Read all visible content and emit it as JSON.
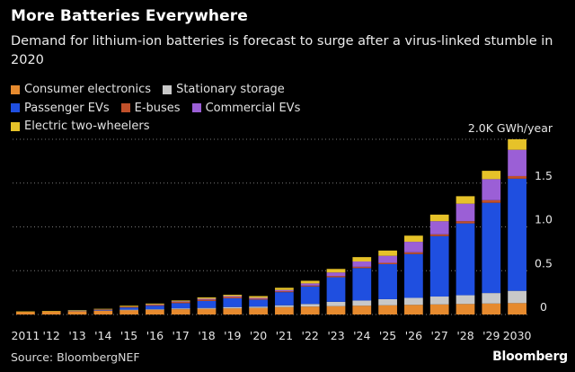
{
  "header": {
    "title": "More Batteries Everywhere",
    "subtitle": "Demand for lithium-ion batteries is forecast to surge after a virus-linked stumble in 2020"
  },
  "footer": {
    "source": "Source: BloombergNEF",
    "brand": "Bloomberg"
  },
  "chart_data": {
    "type": "bar",
    "stacked": true,
    "title": "More Batteries Everywhere",
    "subtitle": "Demand for lithium-ion batteries is forecast to surge after a virus-linked stumble in 2020",
    "unit": "GWh/year",
    "top_tick_label": "2.0K GWh/year",
    "ylim": [
      0,
      2.0
    ],
    "yticks": [
      0,
      0.5,
      1.0,
      1.5
    ],
    "ytick_labels": [
      "0",
      "0.5",
      "1.0",
      "1.5"
    ],
    "grid": true,
    "legend_position": "top-left",
    "categories": [
      "2011",
      "'12",
      "'13",
      "'14",
      "'15",
      "'16",
      "'17",
      "'18",
      "'19",
      "'20",
      "'21",
      "'22",
      "'23",
      "'24",
      "'25",
      "'26",
      "'27",
      "'28",
      "'29",
      "2030"
    ],
    "series": [
      {
        "name": "Consumer electronics",
        "color": "#e68a2e",
        "values": [
          0.03,
          0.035,
          0.04,
          0.045,
          0.05,
          0.055,
          0.06,
          0.065,
          0.07,
          0.075,
          0.085,
          0.09,
          0.095,
          0.1,
          0.105,
          0.11,
          0.115,
          0.12,
          0.125,
          0.13
        ]
      },
      {
        "name": "Stationary storage",
        "color": "#c8c8c8",
        "values": [
          0.0,
          0.0,
          0.0,
          0.0,
          0.005,
          0.005,
          0.01,
          0.01,
          0.015,
          0.015,
          0.02,
          0.03,
          0.05,
          0.06,
          0.07,
          0.08,
          0.09,
          0.1,
          0.12,
          0.14
        ]
      },
      {
        "name": "Passenger EVs",
        "color": "#1f4fe0",
        "values": [
          0.0,
          0.0,
          0.005,
          0.01,
          0.025,
          0.04,
          0.06,
          0.08,
          0.1,
          0.08,
          0.15,
          0.2,
          0.28,
          0.37,
          0.4,
          0.5,
          0.69,
          0.82,
          1.03,
          1.28
        ]
      },
      {
        "name": "E-buses",
        "color": "#c0502a",
        "values": [
          0.0,
          0.0,
          0.0,
          0.005,
          0.01,
          0.01,
          0.015,
          0.015,
          0.015,
          0.01,
          0.01,
          0.01,
          0.015,
          0.015,
          0.015,
          0.02,
          0.02,
          0.025,
          0.03,
          0.03
        ]
      },
      {
        "name": "Commercial EVs",
        "color": "#9b5fd6",
        "values": [
          0.0,
          0.0,
          0.0,
          0.0,
          0.0,
          0.005,
          0.005,
          0.01,
          0.01,
          0.01,
          0.015,
          0.025,
          0.04,
          0.06,
          0.08,
          0.12,
          0.15,
          0.2,
          0.24,
          0.3
        ]
      },
      {
        "name": "Electric two-wheelers",
        "color": "#e6c229",
        "values": [
          0.005,
          0.005,
          0.005,
          0.005,
          0.01,
          0.01,
          0.01,
          0.015,
          0.015,
          0.02,
          0.025,
          0.03,
          0.04,
          0.05,
          0.06,
          0.07,
          0.075,
          0.085,
          0.095,
          0.12
        ]
      }
    ]
  }
}
